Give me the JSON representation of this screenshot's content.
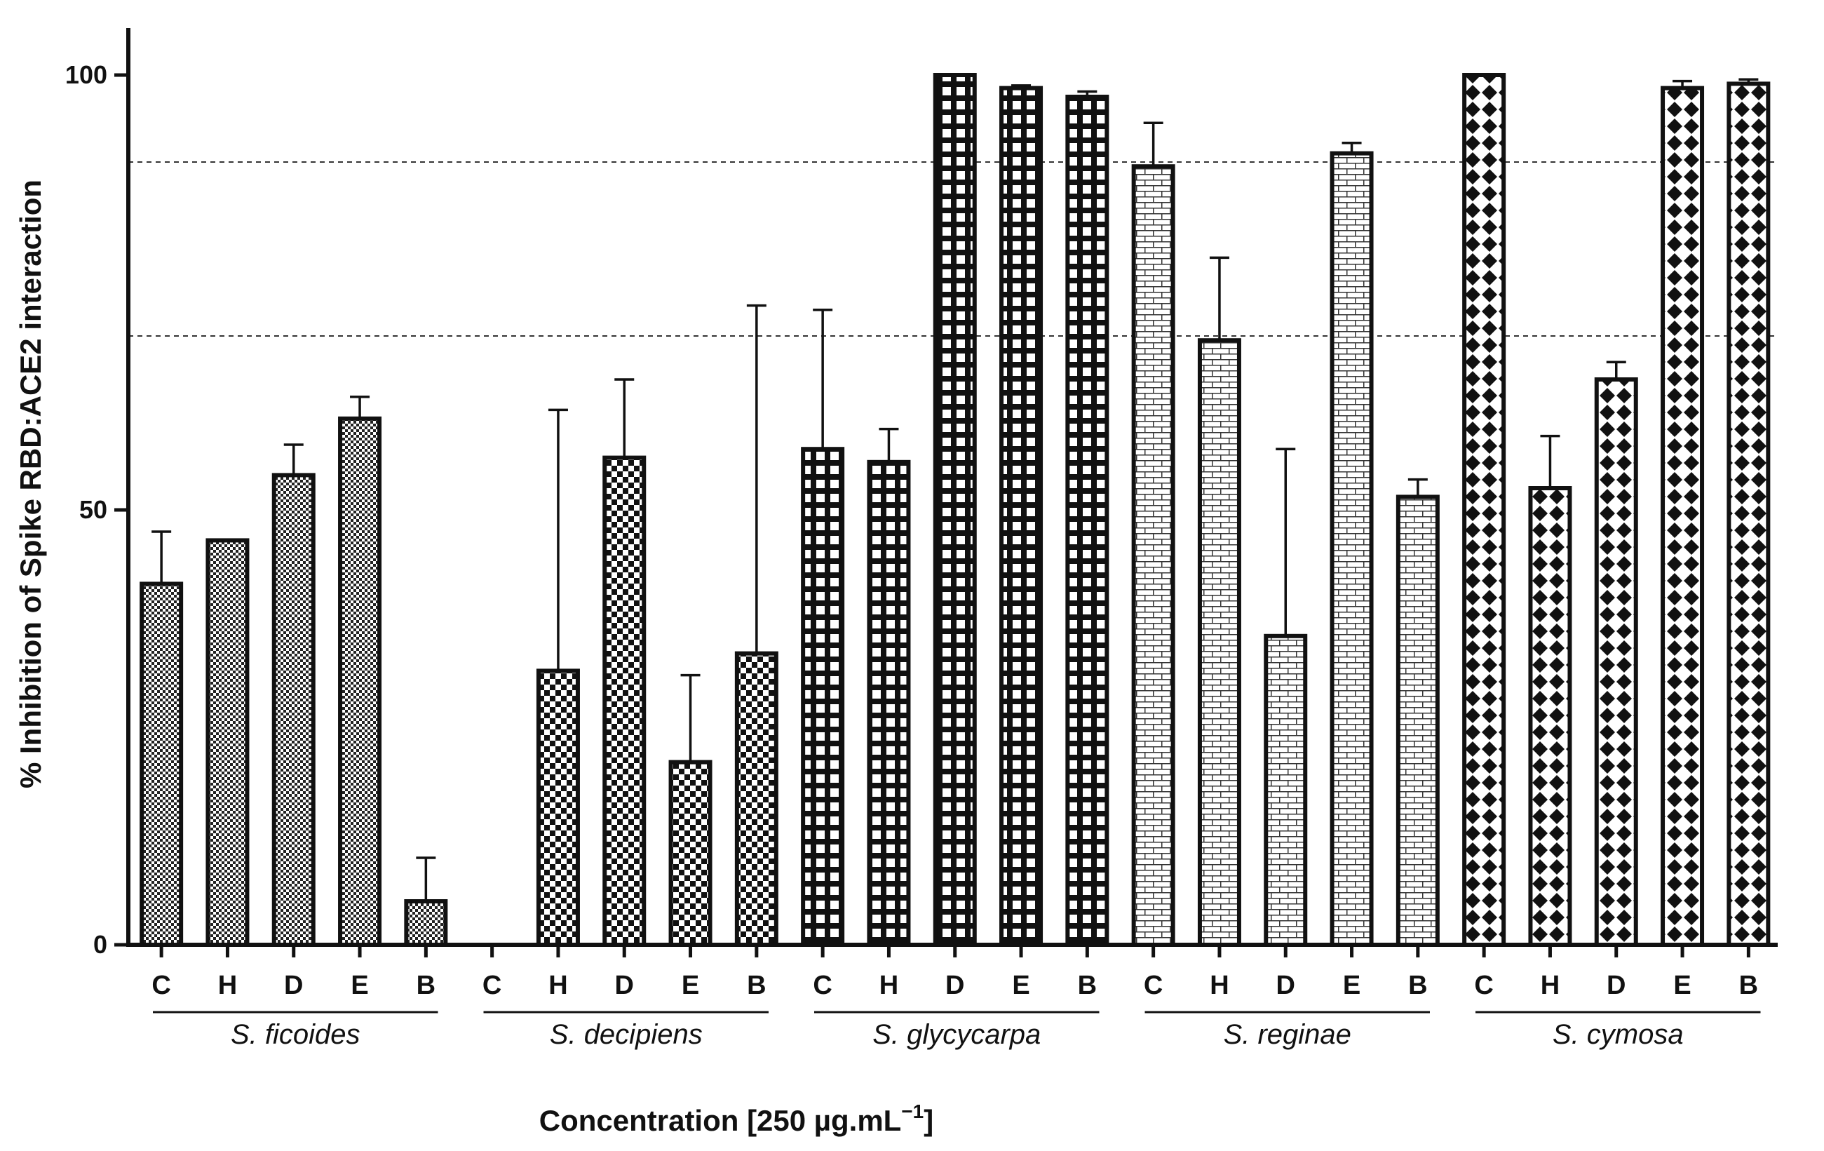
{
  "chart_data": {
    "type": "bar",
    "ylabel": "% Inhibition of Spike RBD:ACE2 interaction",
    "xlabel_main": "Concentration [250 µg.mL",
    "xlabel_sup": "−1",
    "xlabel_end": "]",
    "ylim": [
      0,
      100
    ],
    "yticks": [
      "0",
      "50",
      "100"
    ],
    "reference_lines": [
      90,
      70
    ],
    "groups": [
      {
        "name": "S. ficoides",
        "pattern": "fine-check",
        "categories": [
          "C",
          "H",
          "D",
          "E",
          "B"
        ],
        "values": [
          41.5,
          46.5,
          54,
          60.5,
          5
        ],
        "errors": [
          6,
          0,
          3.5,
          2.5,
          5
        ]
      },
      {
        "name": "S. decipiens",
        "pattern": "check",
        "categories": [
          "C",
          "H",
          "D",
          "E",
          "B"
        ],
        "values": [
          0,
          31.5,
          56,
          21,
          33.5
        ],
        "errors": [
          0,
          30,
          9,
          10,
          40
        ]
      },
      {
        "name": "S. glycycarpa",
        "pattern": "grid",
        "categories": [
          "C",
          "H",
          "D",
          "E",
          "B"
        ],
        "values": [
          57,
          55.5,
          100,
          98.5,
          97.5
        ],
        "errors": [
          16,
          3.8,
          0,
          0.3,
          0.6
        ]
      },
      {
        "name": "S. reginae",
        "pattern": "brick",
        "categories": [
          "C",
          "H",
          "D",
          "E",
          "B"
        ],
        "values": [
          89.5,
          69.5,
          35.5,
          91,
          51.5
        ],
        "errors": [
          5,
          9.5,
          21.5,
          1.2,
          2
        ]
      },
      {
        "name": "S. cymosa",
        "pattern": "diamond",
        "categories": [
          "C",
          "H",
          "D",
          "E",
          "B"
        ],
        "values": [
          100,
          52.5,
          65,
          98.5,
          99
        ],
        "errors": [
          0,
          6,
          2,
          0.8,
          0.5
        ]
      }
    ]
  }
}
